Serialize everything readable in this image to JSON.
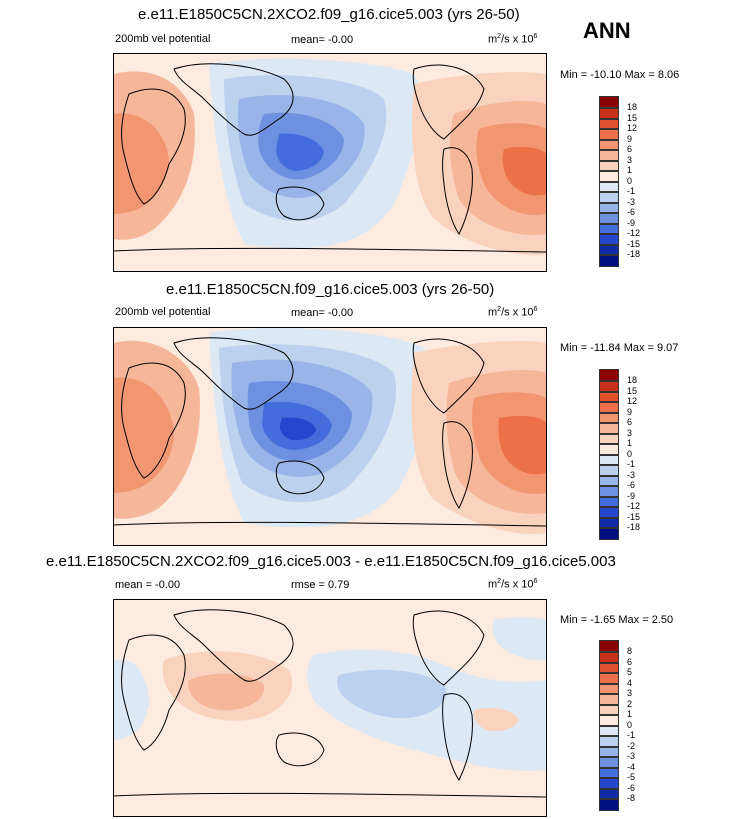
{
  "season_label": "ANN",
  "panels": [
    {
      "title": "e.e11.E1850C5CN.2XCO2.f09_g16.cice5.003 (yrs 26-50)",
      "left_label": "200mb vel potential",
      "center_label": "mean=  -0.00",
      "units_base": "m",
      "units_exp": "2",
      "units_mid": "/s x 10",
      "units_scale_exp": "6",
      "minmax": "Min = -10.10 Max =   8.06",
      "colorbar_labels": [
        "18",
        "15",
        "12",
        "9",
        "6",
        "3",
        "1",
        "0",
        "-1",
        "-3",
        "-6",
        "-9",
        "-12",
        "-15",
        "-18"
      ],
      "colorbar_colors": [
        "#8b0000",
        "#c8321a",
        "#e0502c",
        "#ec7048",
        "#f29671",
        "#f6b699",
        "#fad3bf",
        "#fdebe0",
        "#dde8f5",
        "#bcd1ee",
        "#98b4e8",
        "#6d91e0",
        "#446cdc",
        "#2547cd",
        "#112ba6",
        "#000f80"
      ]
    },
    {
      "title": "e.e11.E1850C5CN.f09_g16.cice5.003 (yrs 26-50)",
      "left_label": "200mb vel potential",
      "center_label": "mean=  -0.00",
      "units_base": "m",
      "units_exp": "2",
      "units_mid": "/s x 10",
      "units_scale_exp": "6",
      "minmax": "Min = -11.84 Max =   9.07",
      "colorbar_labels": [
        "18",
        "15",
        "12",
        "9",
        "6",
        "3",
        "1",
        "0",
        "-1",
        "-3",
        "-6",
        "-9",
        "-12",
        "-15",
        "-18"
      ],
      "colorbar_colors": [
        "#8b0000",
        "#c8321a",
        "#e0502c",
        "#ec7048",
        "#f29671",
        "#f6b699",
        "#fad3bf",
        "#fdebe0",
        "#dde8f5",
        "#bcd1ee",
        "#98b4e8",
        "#6d91e0",
        "#446cdc",
        "#2547cd",
        "#112ba6",
        "#000f80"
      ]
    },
    {
      "title": "e.e11.E1850C5CN.2XCO2.f09_g16.cice5.003 - e.e11.E1850C5CN.f09_g16.cice5.003",
      "left_label": "mean =  -0.00",
      "center_label": "rmse =   0.79",
      "units_base": "m",
      "units_exp": "2",
      "units_mid": "/s x 10",
      "units_scale_exp": "6",
      "minmax": "Min =  -1.65 Max =   2.50",
      "colorbar_labels": [
        "8",
        "6",
        "5",
        "4",
        "3",
        "2",
        "1",
        "0",
        "-1",
        "-2",
        "-3",
        "-4",
        "-5",
        "-6",
        "-8"
      ],
      "colorbar_colors": [
        "#8b0000",
        "#c8321a",
        "#e0502c",
        "#ec7048",
        "#f29671",
        "#f6b699",
        "#fad3bf",
        "#fdebe0",
        "#dde8f5",
        "#bcd1ee",
        "#98b4e8",
        "#6d91e0",
        "#446cdc",
        "#2547cd",
        "#112ba6",
        "#000f80"
      ]
    }
  ]
}
